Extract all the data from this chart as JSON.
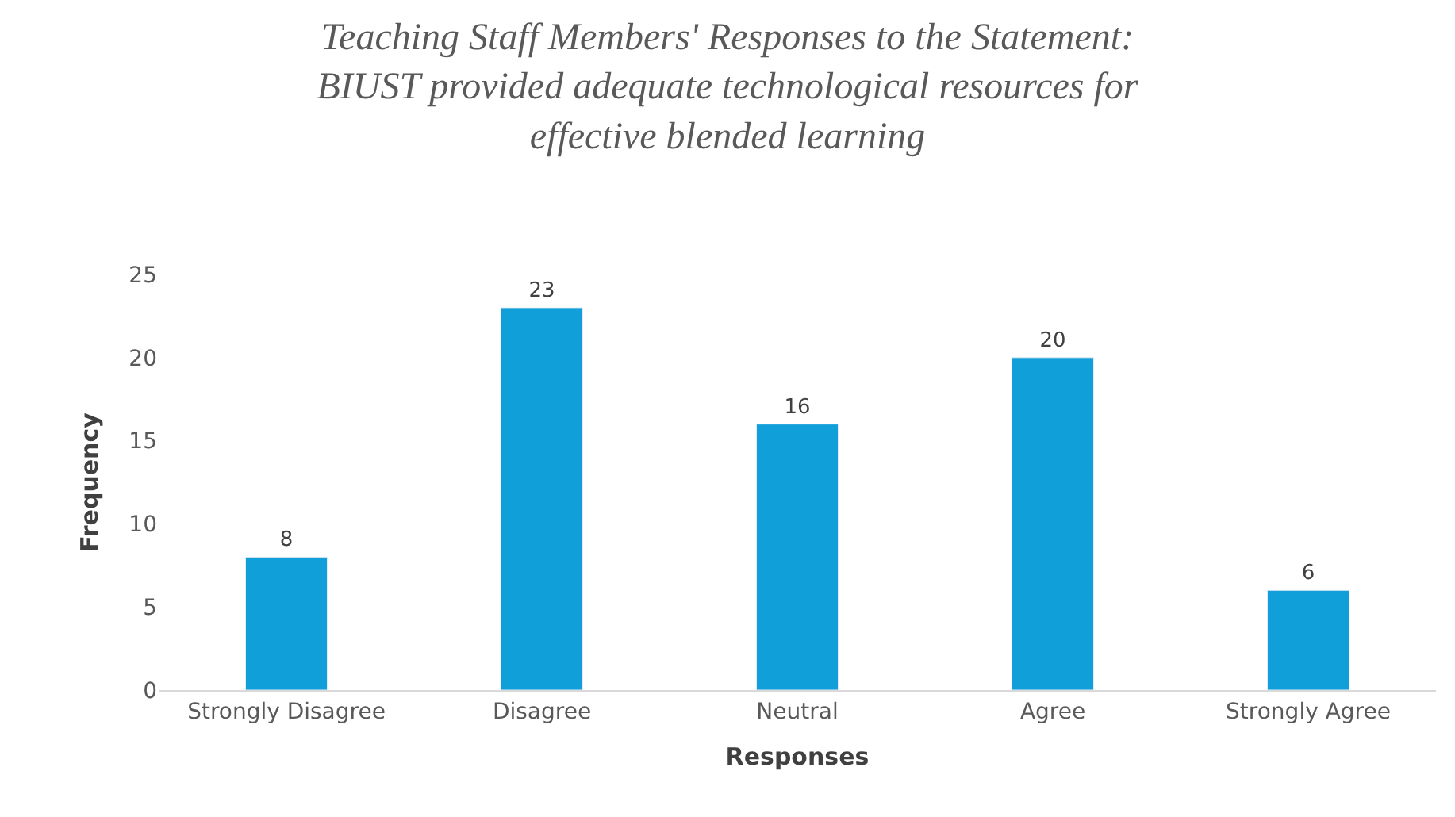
{
  "chart_data": {
    "type": "bar",
    "title": "Teaching Staff Members' Responses to the Statement:\nBIUST provided adequate technological resources for\neffective blended learning",
    "xlabel": "Responses",
    "ylabel": "Frequency",
    "categories": [
      "Strongly Disagree",
      "Disagree",
      "Neutral",
      "Agree",
      "Strongly Agree"
    ],
    "values": [
      8,
      23,
      16,
      20,
      6
    ],
    "color": "#119fd9",
    "data_labels": true,
    "ylim": [
      0,
      25
    ],
    "yticks": [
      0,
      5,
      10,
      15,
      20,
      25
    ],
    "legend": false
  }
}
